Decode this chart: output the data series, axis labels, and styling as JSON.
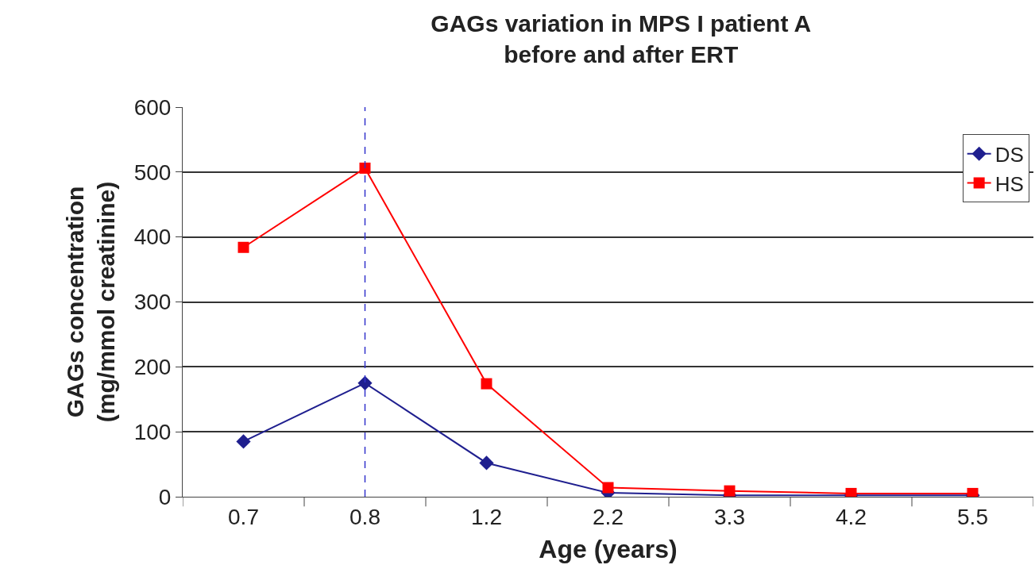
{
  "chart_data": {
    "type": "line",
    "title": "GAGs variation in MPS I patient A\nbefore and after ERT",
    "xlabel": "Age (years)",
    "ylabel": "GAGs concentration\n(mg/mmol creatinine)",
    "categories": [
      "0.7",
      "0.8",
      "1.2",
      "2.2",
      "3.3",
      "4.2",
      "5.5"
    ],
    "series": [
      {
        "name": "DS",
        "color": "#1f1f8f",
        "marker": "diamond",
        "values": [
          85,
          175,
          52,
          6,
          2,
          2,
          2
        ]
      },
      {
        "name": "HS",
        "color": "#ff0000",
        "marker": "square",
        "values": [
          384,
          506,
          174,
          14,
          9,
          5,
          5
        ]
      }
    ],
    "ylim": [
      0,
      600
    ],
    "yticks": [
      0,
      100,
      200,
      300,
      400,
      500,
      600
    ],
    "grid": "y",
    "legend": "top right",
    "ref_lines": [
      {
        "axis": "x",
        "value": "0.8",
        "color": "#3333cc",
        "line_style": "dashed"
      }
    ]
  }
}
